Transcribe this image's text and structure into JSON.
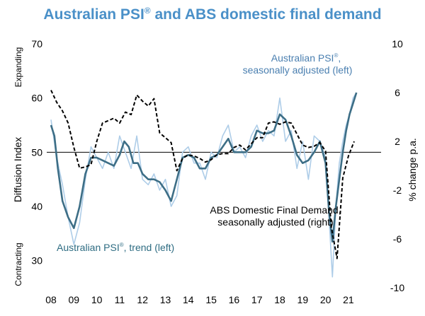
{
  "title": {
    "main": "Australian PSI",
    "reg": "®",
    "rest": " and ABS domestic final demand"
  },
  "colors": {
    "title": "#4a90c8",
    "psi_sa": "#aecde8",
    "psi_trend": "#3d6e86",
    "abs": "#000000",
    "ref_line": "#000000"
  },
  "chart_data": {
    "type": "line",
    "title": "Australian PSI® and ABS domestic final demand",
    "xlabel": "",
    "left_axis": {
      "label": "Diffusion Index",
      "ylim": [
        25,
        70
      ],
      "ticks": [
        30,
        40,
        50,
        60,
        70
      ]
    },
    "right_axis": {
      "label": "% change p.a.",
      "ylim": [
        -10,
        10
      ],
      "ticks": [
        -10,
        -6,
        -2,
        2,
        6,
        10
      ]
    },
    "x_ticks": [
      "08",
      "09",
      "10",
      "11",
      "12",
      "13",
      "14",
      "15",
      "16",
      "17",
      "18",
      "19",
      "20",
      "21"
    ],
    "axis_top_label": "Expanding",
    "axis_bottom_label": "Contracting",
    "reference_line": 50,
    "series": [
      {
        "name": "Australian PSI®, seasonally adjusted (left)",
        "axis": "left",
        "style": "thin-light",
        "x": [
          8.0,
          8.25,
          8.5,
          8.75,
          9.0,
          9.25,
          9.5,
          9.75,
          10.0,
          10.25,
          10.5,
          10.75,
          11.0,
          11.25,
          11.5,
          11.75,
          12.0,
          12.25,
          12.5,
          12.75,
          13.0,
          13.25,
          13.5,
          13.75,
          14.0,
          14.25,
          14.5,
          14.75,
          15.0,
          15.25,
          15.5,
          15.75,
          16.0,
          16.25,
          16.5,
          16.75,
          17.0,
          17.25,
          17.5,
          17.75,
          18.0,
          18.25,
          18.5,
          18.75,
          19.0,
          19.25,
          19.5,
          19.75,
          20.0,
          20.15,
          20.3,
          20.45,
          20.6,
          20.75,
          20.9,
          21.05,
          21.2,
          21.35
        ],
        "values": [
          56,
          49,
          44,
          38,
          33,
          37,
          45,
          51,
          49,
          47,
          50,
          47,
          53,
          50,
          47,
          53,
          45,
          44,
          46,
          43,
          45,
          40,
          42,
          50,
          51,
          48,
          48,
          45,
          50,
          49,
          53,
          55,
          50,
          51,
          49,
          53,
          55,
          52,
          54,
          53,
          60,
          52,
          54,
          47,
          52,
          45,
          53,
          52,
          49,
          38,
          27,
          40,
          48,
          52,
          55,
          57,
          60,
          61
        ]
      },
      {
        "name": "Australian PSI®, trend (left)",
        "axis": "left",
        "style": "thick",
        "x": [
          8.0,
          8.15,
          8.3,
          8.5,
          8.75,
          9.0,
          9.25,
          9.5,
          9.75,
          10.0,
          10.25,
          10.5,
          10.75,
          11.0,
          11.2,
          11.4,
          11.6,
          11.8,
          12.0,
          12.25,
          12.5,
          12.75,
          13.0,
          13.25,
          13.5,
          13.75,
          14.0,
          14.25,
          14.5,
          14.75,
          15.0,
          15.25,
          15.5,
          15.75,
          16.0,
          16.25,
          16.5,
          16.75,
          17.0,
          17.25,
          17.5,
          17.75,
          18.0,
          18.25,
          18.5,
          18.75,
          19.0,
          19.25,
          19.5,
          19.75,
          20.0,
          20.15,
          20.3,
          20.45,
          20.6,
          20.75,
          20.9,
          21.05,
          21.2,
          21.35
        ],
        "values": [
          55,
          53,
          47,
          41,
          38,
          36,
          40,
          46,
          49,
          49,
          48.5,
          48,
          47.5,
          49.5,
          52,
          51,
          48,
          48,
          46,
          45,
          45,
          44.5,
          43,
          41,
          45,
          49,
          49.5,
          49,
          47,
          47,
          49,
          49.5,
          51,
          52.5,
          50,
          50,
          50,
          51,
          54,
          53.5,
          53.5,
          54,
          57,
          56,
          53,
          49.5,
          48,
          48.5,
          50,
          52,
          48,
          39,
          33.5,
          40,
          45,
          50,
          54,
          57,
          59,
          61
        ]
      },
      {
        "name": "ABS Domestic Final Demand, seasonally adjusted (right)",
        "axis": "right",
        "style": "dashed",
        "x": [
          8.0,
          8.25,
          8.5,
          8.75,
          9.0,
          9.25,
          9.5,
          9.75,
          10.0,
          10.25,
          10.5,
          10.75,
          11.0,
          11.25,
          11.5,
          11.75,
          12.0,
          12.25,
          12.5,
          12.75,
          13.0,
          13.25,
          13.5,
          13.75,
          14.0,
          14.25,
          14.5,
          14.75,
          15.0,
          15.25,
          15.5,
          15.75,
          16.0,
          16.25,
          16.5,
          16.75,
          17.0,
          17.25,
          17.5,
          17.75,
          18.0,
          18.25,
          18.5,
          18.75,
          19.0,
          19.25,
          19.5,
          19.75,
          20.0,
          20.25,
          20.5,
          20.75,
          21.0,
          21.25
        ],
        "values": [
          6.2,
          5.2,
          4.5,
          3.5,
          1.5,
          -0.2,
          -0.1,
          0.1,
          2.0,
          3.5,
          3.7,
          3.9,
          3.5,
          4.4,
          4.2,
          5.8,
          5.3,
          4.9,
          5.5,
          2.7,
          2.3,
          1.9,
          -0.4,
          0.6,
          0.9,
          0.8,
          0.6,
          0.3,
          0.5,
          0.9,
          1.0,
          1.0,
          1.5,
          1.7,
          1.3,
          1.8,
          2.3,
          2.3,
          3.5,
          3.6,
          3.4,
          3.6,
          3.5,
          2.6,
          1.7,
          1.5,
          1.6,
          1.9,
          1.2,
          -5.0,
          -7.6,
          -1.0,
          0.8,
          2.0
        ]
      }
    ],
    "annotations": {
      "psi_sa": {
        "prefix": "Australian PSI",
        "reg": "®",
        "suffix": ",",
        "line2": "seasonally adjusted (left)"
      },
      "abs": {
        "line1": "ABS Domestic Final Demand,",
        "line2": "seasonally adjusted (right)"
      },
      "trend": {
        "prefix": "Australian PSI",
        "reg": "®",
        "suffix": ", trend (left)"
      }
    }
  }
}
